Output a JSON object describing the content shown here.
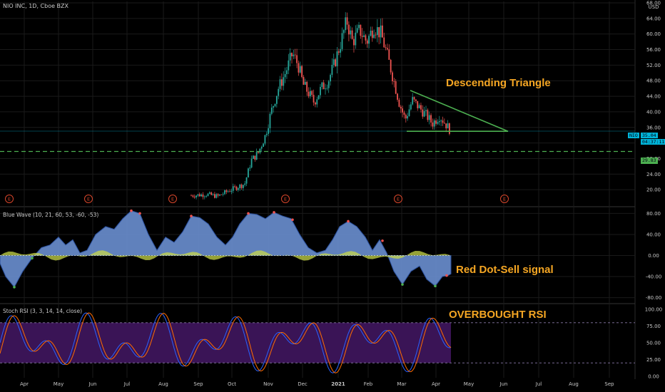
{
  "header": {
    "symbol_line": "NIO INC, 1D, Cboe BZX",
    "currency": "USD"
  },
  "annotations": {
    "descending_triangle": "Descending Triangle",
    "red_dot_sell": "Red Dot-Sell signal",
    "overbought_rsi": "OVERBOUGHT RSI"
  },
  "price_tags": {
    "current_symbol": "NIO",
    "current_price": "35.04",
    "current_timer": "04:37:11",
    "support_level": "29.83"
  },
  "earnings_marker_label": "E",
  "colors": {
    "background": "#000000",
    "grid": "#1a1a1a",
    "candle_up": "#26a69a",
    "candle_down": "#ef5350",
    "triangle": "#4caf50",
    "support_line": "#4caf50",
    "current_price_line": "#00b4d8",
    "wave_main": "#6a8fd0",
    "wave_secondary": "#c8d84a",
    "stoch_band": "#3a1456",
    "stoch_k": "#2962ff",
    "stoch_d": "#ff6d00",
    "annotation": "#f5a623",
    "earnings": "#d9462b"
  },
  "chart_data": [
    {
      "type": "candlestick",
      "title": "NIO INC, 1D, Cboe BZX",
      "ylabel": "USD",
      "ylim": [
        16,
        68
      ],
      "yticks": [
        "68.00",
        "64.00",
        "60.00",
        "56.00",
        "52.00",
        "48.00",
        "44.00",
        "40.00",
        "36.00",
        "32.00",
        "28.00",
        "24.00",
        "20.00"
      ],
      "xticks": [
        "Apr",
        "May",
        "Jun",
        "Jul",
        "Aug",
        "Sep",
        "Oct",
        "Nov",
        "Dec",
        "2021",
        "Feb",
        "Mar",
        "Apr",
        "May",
        "Jun",
        "Jul",
        "Aug",
        "Sep"
      ],
      "monthly_close_approx": {
        "x": [
          "2020-08",
          "2020-09",
          "2020-10",
          "2020-11",
          "2020-12",
          "2021-01",
          "2021-02",
          "2021-03",
          "2021-04"
        ],
        "y": [
          19.5,
          20.5,
          28,
          47,
          48,
          57,
          59,
          40,
          35
        ]
      },
      "current_price": 35.04,
      "support_level": 29.83,
      "annotations": [
        "Descending Triangle"
      ],
      "earnings_markers": [
        "E",
        "E",
        "E",
        "E",
        "E",
        "E"
      ]
    },
    {
      "type": "area",
      "title": "Blue Wave (10, 21, 60, 53, -60, -53)",
      "ylim": [
        -90,
        90
      ],
      "yticks": [
        "80.00",
        "40.00",
        "0.00",
        "-40.00",
        "-80.00"
      ],
      "series": [
        {
          "name": "Blue Wave",
          "x": [
            "2020-04",
            "2020-05",
            "2020-06",
            "2020-07",
            "2020-08",
            "2020-09",
            "2020-10",
            "2020-11",
            "2020-12",
            "2021-01",
            "2021-02",
            "2021-03",
            "2021-04"
          ],
          "y": [
            -60,
            10,
            55,
            80,
            35,
            72,
            45,
            82,
            72,
            12,
            60,
            -50,
            -55
          ]
        }
      ],
      "annotations": [
        "Red Dot-Sell signal"
      ]
    },
    {
      "type": "line",
      "title": "Stoch RSI (3, 3, 14, 14, close)",
      "ylim": [
        0,
        100
      ],
      "yticks": [
        "100.00",
        "75.00",
        "50.00",
        "25.00",
        "0.00"
      ],
      "bands": [
        20,
        80
      ],
      "annotations": [
        "OVERBOUGHT RSI"
      ]
    }
  ]
}
